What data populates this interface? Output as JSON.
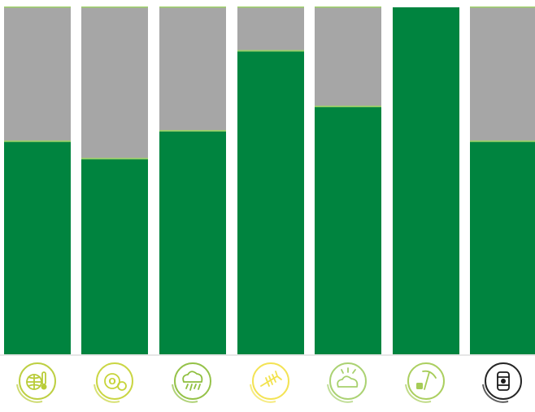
{
  "chart_data": {
    "type": "bar",
    "stacked": true,
    "categories": [
      "climate-change-icon",
      "ozone-depletion-icon",
      "acidification-icon",
      "eutrophication-icon",
      "photochemical-ozone-icon",
      "abiotic-depletion-elements-icon",
      "abiotic-depletion-fossil-icon"
    ],
    "ylim": [
      0,
      100
    ],
    "series": [
      {
        "values": [
          61.5,
          56.5,
          64.5,
          87.5,
          71.5,
          100,
          61.5
        ]
      },
      {
        "values": [
          38.5,
          43.5,
          35.5,
          12.5,
          28.5,
          0,
          38.5
        ]
      }
    ],
    "colors": {
      "lower": "#00843f",
      "upper": "#a6a6a6",
      "cap": "#9fd16a",
      "axis": "#e6e6e6"
    },
    "icon_colors": [
      "#b9cc38",
      "#c7d43a",
      "#8fbf3f",
      "#f2e24c",
      "#a7d06c",
      "#a6cc57",
      "#1a1a1a"
    ],
    "grid": false,
    "legend": "none"
  }
}
